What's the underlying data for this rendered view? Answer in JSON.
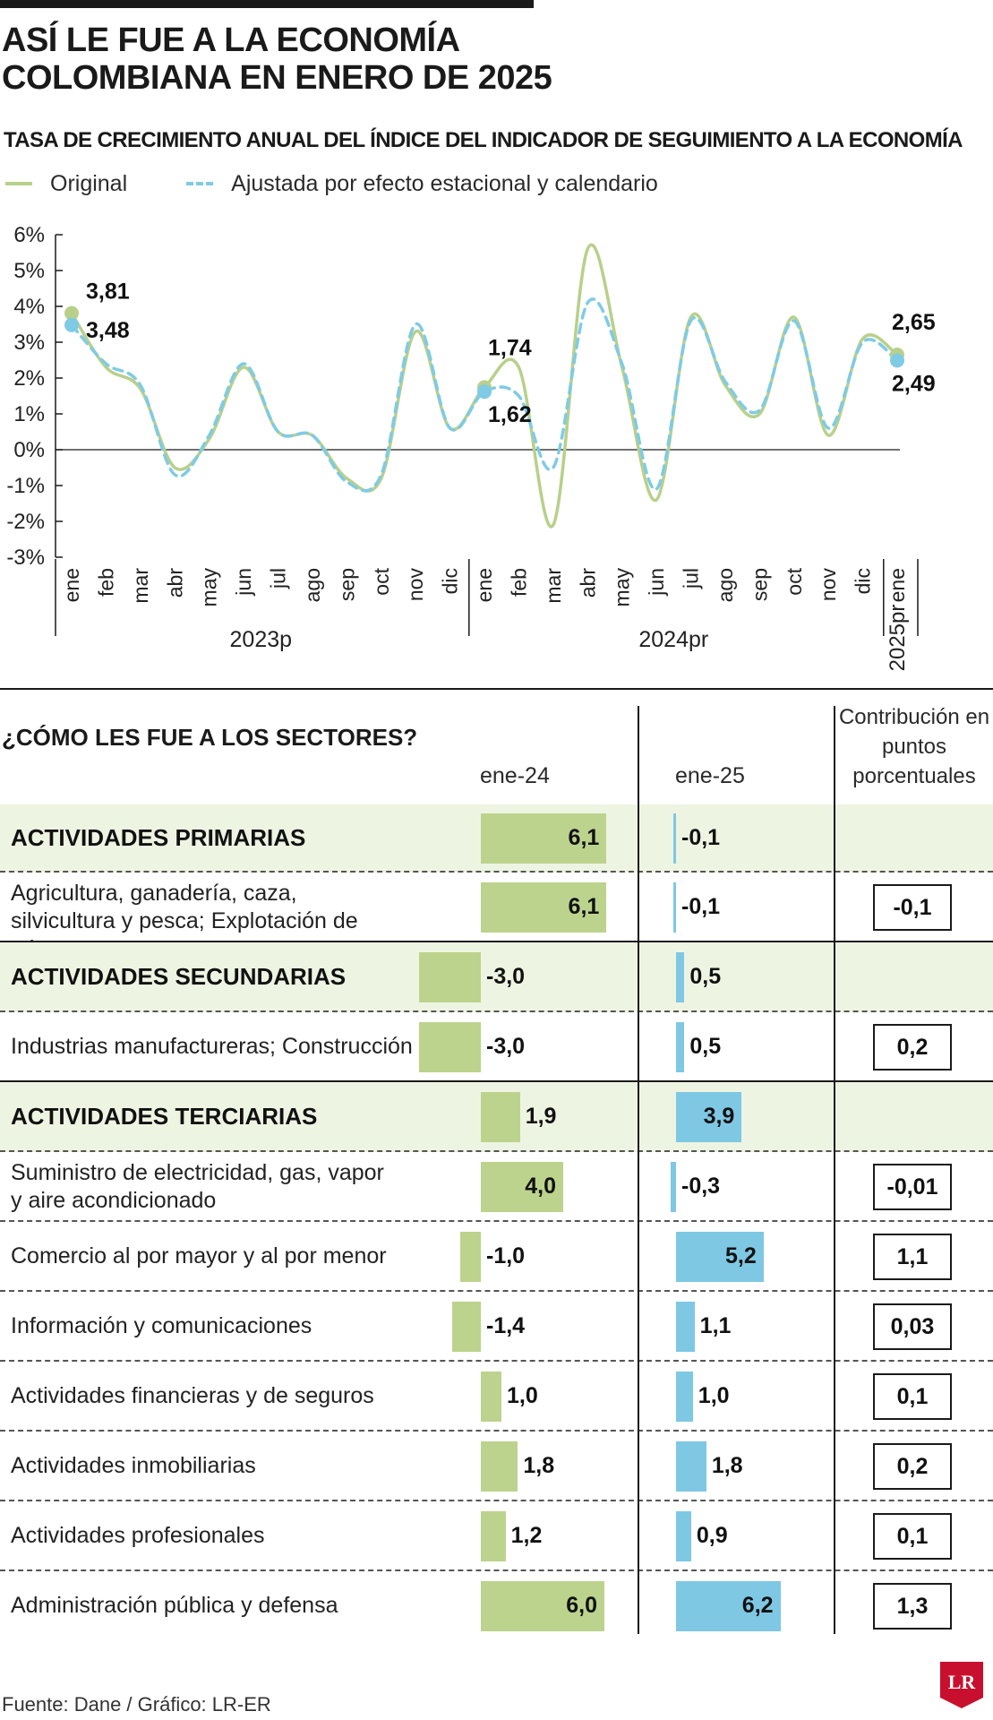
{
  "title_lines": [
    "ASÍ LE FUE A LA ECONOMÍA",
    "COLOMBIANA EN ENERO DE 2025"
  ],
  "logo_text": "LR",
  "source": "Fuente: Dane / Gráfico: LR-ER",
  "colors": {
    "original": "#b8d08a",
    "adjusted": "#7fcbe5",
    "bar_green": "#bcd38d",
    "bar_blue": "#7ec8e4",
    "band": "#eef4e2"
  },
  "chart_data": [
    {
      "type": "line",
      "title": "TASA DE CRECIMIENTO ANUAL DEL ÍNDICE DEL INDICADOR DE SEGUIMIENTO A LA ECONOMÍA",
      "categories": [
        "ene",
        "feb",
        "mar",
        "abr",
        "may",
        "jun",
        "jul",
        "ago",
        "sep",
        "oct",
        "nov",
        "dic",
        "ene",
        "feb",
        "mar",
        "abr",
        "may",
        "jun",
        "jul",
        "ago",
        "sep",
        "oct",
        "nov",
        "dic",
        "ene"
      ],
      "year_groups": [
        {
          "label": "2023p",
          "start": 0,
          "end": 11
        },
        {
          "label": "2024pr",
          "start": 12,
          "end": 23
        },
        {
          "label": "2025pr",
          "start": 24,
          "end": 24
        }
      ],
      "y_ticks": [
        "6%",
        "5%",
        "4%",
        "3%",
        "2%",
        "1%",
        "0%",
        "-1%",
        "-2%",
        "-3%"
      ],
      "ylim": [
        -3,
        6
      ],
      "series": [
        {
          "name": "Original",
          "values": [
            3.81,
            2.3,
            1.7,
            -0.5,
            0.3,
            2.3,
            0.5,
            0.4,
            -0.8,
            -0.8,
            3.3,
            0.6,
            1.74,
            2.3,
            -2.1,
            5.6,
            2.3,
            -1.4,
            3.7,
            1.8,
            1.0,
            3.7,
            0.4,
            3.1,
            2.65
          ]
        },
        {
          "name": "Ajustada por efecto estacional y calendario",
          "values": [
            3.48,
            2.4,
            1.8,
            -0.7,
            0.4,
            2.4,
            0.5,
            0.4,
            -0.9,
            -0.7,
            3.5,
            0.6,
            1.62,
            1.5,
            -0.5,
            4.1,
            2.4,
            -1.1,
            3.6,
            1.9,
            1.1,
            3.6,
            0.6,
            3.0,
            2.49
          ]
        }
      ],
      "annotations": [
        {
          "index": 0,
          "series": 0,
          "text": "3,81"
        },
        {
          "index": 0,
          "series": 1,
          "text": "3,48"
        },
        {
          "index": 12,
          "series": 0,
          "text": "1,74"
        },
        {
          "index": 12,
          "series": 1,
          "text": "1,62"
        },
        {
          "index": 24,
          "series": 0,
          "text": "2,65"
        },
        {
          "index": 24,
          "series": 1,
          "text": "2,49"
        }
      ],
      "grid": false
    },
    {
      "type": "bar",
      "title": "¿CÓMO LES FUE A LOS SECTORES?",
      "column_headers": [
        "ene-24",
        "ene-25",
        "Contribución en puntos porcentuales"
      ],
      "rows": [
        {
          "label": "ACTIVIDADES PRIMARIAS",
          "major": true,
          "v24": 6.1,
          "t24": "6,1",
          "v25": -0.1,
          "t25": "-0,1",
          "contrib": ""
        },
        {
          "label": "Agricultura, ganadería, caza, silvicultura y pesca; Explotación de minas y canteras",
          "major": false,
          "v24": 6.1,
          "t24": "6,1",
          "v25": -0.1,
          "t25": "-0,1",
          "contrib": "-0,1"
        },
        {
          "label": "ACTIVIDADES SECUNDARIAS",
          "major": true,
          "v24": -3.0,
          "t24": "-3,0",
          "v25": 0.5,
          "t25": "0,5",
          "contrib": ""
        },
        {
          "label": "Industrias manufactureras; Construcción",
          "major": false,
          "v24": -3.0,
          "t24": "-3,0",
          "v25": 0.5,
          "t25": "0,5",
          "contrib": "0,2"
        },
        {
          "label": "ACTIVIDADES TERCIARIAS",
          "major": true,
          "v24": 1.9,
          "t24": "1,9",
          "v25": 3.9,
          "t25": "3,9",
          "contrib": ""
        },
        {
          "label": "Suministro de electricidad, gas, vapor y aire acondicionado",
          "major": false,
          "v24": 4.0,
          "t24": "4,0",
          "v25": -0.3,
          "t25": "-0,3",
          "contrib": "-0,01"
        },
        {
          "label": "Comercio al por mayor y al por menor",
          "major": false,
          "v24": -1.0,
          "t24": "-1,0",
          "v25": 5.2,
          "t25": "5,2",
          "contrib": "1,1"
        },
        {
          "label": "Información y comunicaciones",
          "major": false,
          "v24": -1.4,
          "t24": "-1,4",
          "v25": 1.1,
          "t25": "1,1",
          "contrib": "0,03"
        },
        {
          "label": "Actividades financieras y de seguros",
          "major": false,
          "v24": 1.0,
          "t24": "1,0",
          "v25": 1.0,
          "t25": "1,0",
          "contrib": "0,1"
        },
        {
          "label": "Actividades inmobiliarias",
          "major": false,
          "v24": 1.8,
          "t24": "1,8",
          "v25": 1.8,
          "t25": "1,8",
          "contrib": "0,2"
        },
        {
          "label": "Actividades profesionales",
          "major": false,
          "v24": 1.2,
          "t24": "1,2",
          "v25": 0.9,
          "t25": "0,9",
          "contrib": "0,1"
        },
        {
          "label": "Administración pública y defensa",
          "major": false,
          "v24": 6.0,
          "t24": "6,0",
          "v25": 6.2,
          "t25": "6,2",
          "contrib": "1,3"
        }
      ]
    }
  ]
}
